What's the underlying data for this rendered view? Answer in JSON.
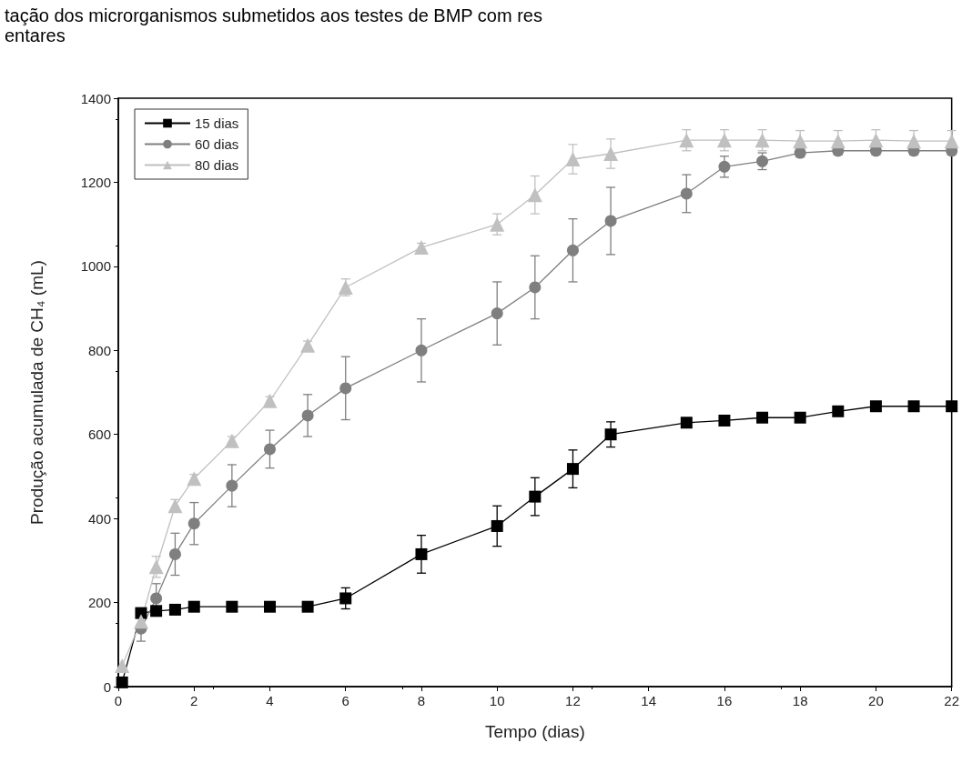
{
  "chart_data": {
    "type": "line",
    "title": "tação dos microrganismos submetidos aos testes de BMP com res",
    "subtitle": "entares",
    "xlabel": "Tempo (dias)",
    "ylabel": "Produção acumulada de CH₄ (mL)",
    "x": [
      0.1,
      0.6,
      1,
      1.5,
      2,
      3,
      4,
      5,
      6,
      8,
      10,
      11,
      12,
      13,
      15,
      16,
      17,
      18,
      19,
      20,
      21,
      22
    ],
    "series": [
      {
        "name": "15 dias",
        "color": "#000000",
        "marker": "square",
        "values": [
          10,
          175,
          180,
          183,
          190,
          190,
          190,
          190,
          210,
          315,
          382,
          452,
          518,
          600,
          628,
          633,
          640,
          640,
          655,
          667,
          667,
          667
        ],
        "errors": [
          null,
          10,
          5,
          5,
          5,
          5,
          5,
          5,
          25,
          45,
          48,
          45,
          45,
          30,
          null,
          null,
          null,
          null,
          null,
          null,
          null,
          null
        ]
      },
      {
        "name": "60 dias",
        "color": "#7f7f7f",
        "marker": "circle",
        "values": [
          null,
          138,
          210,
          315,
          388,
          478,
          565,
          645,
          710,
          800,
          888,
          950,
          1038,
          1108,
          1173,
          1237,
          1250,
          1270,
          1275,
          1275,
          1275,
          1275
        ],
        "errors": [
          null,
          30,
          35,
          50,
          50,
          50,
          45,
          50,
          75,
          75,
          75,
          75,
          75,
          80,
          45,
          25,
          20,
          10,
          10,
          10,
          10,
          10
        ]
      },
      {
        "name": "80 dias",
        "color": "#c0c0c0",
        "marker": "triangle",
        "values": [
          50,
          155,
          285,
          430,
          495,
          585,
          680,
          812,
          950,
          1045,
          1100,
          1170,
          1255,
          1268,
          1300,
          1300,
          1300,
          1298,
          1298,
          1300,
          1298,
          1298
        ],
        "errors": [
          null,
          20,
          25,
          15,
          10,
          10,
          10,
          10,
          20,
          10,
          25,
          45,
          35,
          35,
          25,
          25,
          25,
          25,
          25,
          25,
          25,
          25
        ]
      }
    ],
    "xlim": [
      0,
      22
    ],
    "xticks": [
      0,
      2,
      4,
      6,
      8,
      10,
      12,
      14,
      16,
      18,
      20,
      22
    ],
    "ylim": [
      0,
      1400
    ],
    "yticks": [
      0,
      200,
      400,
      600,
      800,
      1000,
      1200,
      1400
    ],
    "grid": false,
    "legend": "top left",
    "line_style": "solid"
  }
}
